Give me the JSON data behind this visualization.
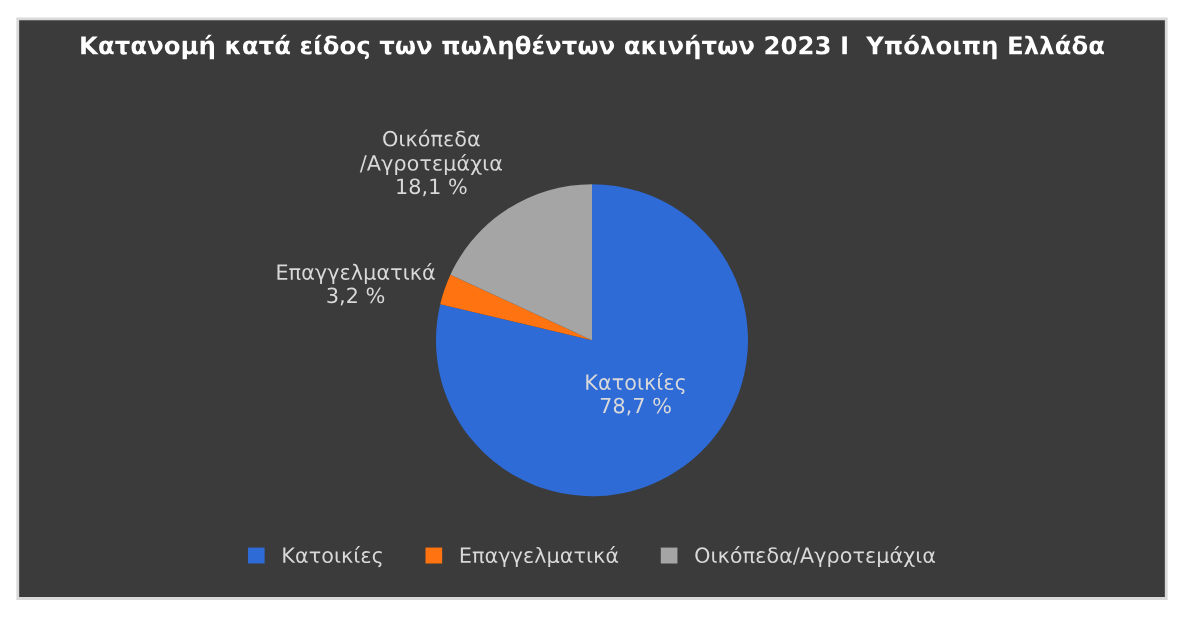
{
  "chart_data": {
    "type": "pie",
    "title": "Κατανομή κατά είδος των πωληθέντων ακινήτων 2023 Ι  Υπόλοιπη Ελλάδα",
    "categories": [
      "Κατοικίες",
      "Επαγγελματικά",
      "Οικόπεδα/Αγροτεμάχια"
    ],
    "values": [
      78.7,
      3.2,
      18.1
    ],
    "colors": [
      "#2e6bd6",
      "#ff7410",
      "#a5a5a5"
    ],
    "value_labels": [
      "78,7 %",
      "3,2 %",
      "18,1 %"
    ],
    "legend": "bottom"
  }
}
